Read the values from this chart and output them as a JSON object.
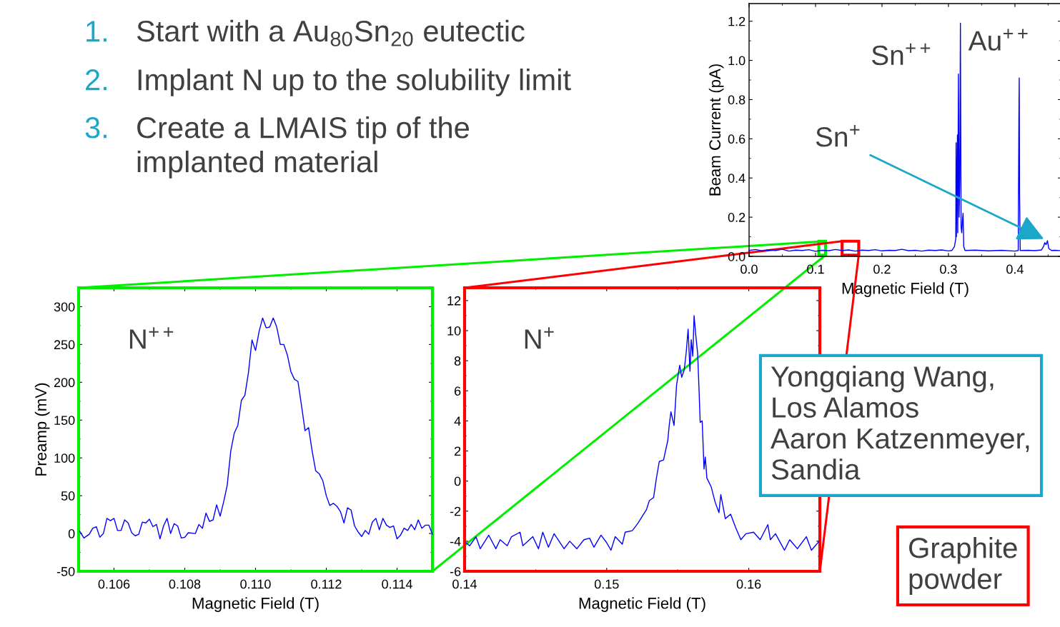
{
  "chart_data": [
    {
      "type": "other",
      "annotations": [
        "1.",
        "Start with a Au$_{80}$Sn$_{20}$ eutectic",
        "2.",
        "Implant N up to the solubility limit",
        "3.",
        "Create a LMAIS tip of the\nimplanted material"
      ]
    },
    {
      "type": "line",
      "xlabel": "Magnetic Field (T)",
      "ylabel": "Beam Current (pA)",
      "xlim": [
        0,
        0.47
      ],
      "ylim": [
        0,
        1.29
      ],
      "xticks": [
        {
          "value": 0,
          "label": "0.0"
        },
        0.1,
        0.2,
        0.3,
        0.4
      ],
      "yticks": [
        {
          "value": 0,
          "label": "0.0"
        },
        0.2,
        0.4,
        0.6,
        0.8,
        {
          "value": 1,
          "label": "1.0"
        },
        1.2
      ],
      "series": [
        {
          "color": "#0000ff",
          "x": [
            0,
            0.01,
            0.02,
            0.03,
            0.04,
            0.05,
            0.06,
            0.07,
            0.08,
            0.09,
            0.1,
            0.11,
            0.12,
            0.13,
            0.14,
            0.15,
            0.16,
            0.17,
            0.18,
            0.19,
            0.2,
            0.21,
            0.22,
            0.23,
            0.24,
            0.25,
            0.26,
            0.27,
            0.28,
            0.29,
            0.3,
            0.305,
            0.309,
            0.311,
            0.3115,
            0.312,
            0.3135,
            0.314,
            0.315,
            0.316,
            0.317,
            0.318,
            0.319,
            0.32,
            0.321,
            0.322,
            0.323,
            0.325,
            0.34,
            0.36,
            0.38,
            0.4,
            0.405,
            0.406,
            0.4065,
            0.407,
            0.408,
            0.42,
            0.43,
            0.44,
            0.443,
            0.445,
            0.447,
            0.449,
            0.451,
            0.455,
            0.46,
            0.47
          ],
          "values": [
            0.03,
            0.035,
            0.028,
            0.033,
            0.03,
            0.036,
            0.027,
            0.032,
            0.03,
            0.034,
            0.026,
            0.031,
            0.029,
            0.035,
            0.03,
            0.033,
            0.027,
            0.032,
            0.03,
            0.034,
            0.028,
            0.031,
            0.03,
            0.036,
            0.029,
            0.031,
            0.027,
            0.032,
            0.03,
            0.033,
            0.028,
            0.03,
            0.05,
            0.09,
            0.58,
            0.1,
            0.62,
            0.12,
            0.93,
            0.2,
            0.4,
            1.19,
            0.15,
            0.12,
            0.18,
            0.22,
            0.05,
            0.03,
            0.032,
            0.028,
            0.031,
            0.027,
            0.03,
            0.7,
            0.91,
            0.32,
            0.03,
            0.031,
            0.029,
            0.033,
            0.05,
            0.07,
            0.06,
            0.08,
            0.04,
            0.03,
            0.031,
            0.029
          ]
        }
      ],
      "annotations": [
        {
          "text": "Sn$^{++}$",
          "x": 0.318,
          "y": 1.19
        },
        {
          "text": "Au$^{++}$",
          "x": 0.4065,
          "y": 0.91
        },
        {
          "text": "Sn$^{+}$",
          "x": 0.449,
          "y": 0.08
        }
      ]
    },
    {
      "type": "line",
      "xlabel": "Magnetic Field (T)",
      "ylabel": "Preamp (mV)",
      "xlim": [
        0.105,
        0.115
      ],
      "ylim": [
        -50,
        325
      ],
      "xticks": [
        0.106,
        0.108,
        {
          "value": 0.11,
          "label": "0.110"
        },
        0.112,
        0.114
      ],
      "yticks": [
        -50,
        0,
        50,
        100,
        150,
        200,
        250,
        300
      ],
      "series": [
        {
          "color": "#0000ff",
          "x": [
            0.10503,
            0.10515,
            0.1053,
            0.1054,
            0.1055,
            0.1056,
            0.1057,
            0.1058,
            0.1059,
            0.106,
            0.1061,
            0.1062,
            0.1063,
            0.1064,
            0.1065,
            0.1066,
            0.1067,
            0.1068,
            0.1069,
            0.107,
            0.1071,
            0.1072,
            0.1073,
            0.1074,
            0.1075,
            0.1076,
            0.1077,
            0.1078,
            0.1079,
            0.108,
            0.1081,
            0.1083,
            0.1084,
            0.1085,
            0.1086,
            0.1087,
            0.1088,
            0.1089,
            0.109,
            0.1091,
            0.1092,
            0.1093,
            0.1094,
            0.1095,
            0.1096,
            0.1097,
            0.1098,
            0.1099,
            0.11,
            0.1101,
            0.1102,
            0.1103,
            0.1104,
            0.1105,
            0.1106,
            0.1107,
            0.1108,
            0.1109,
            0.111,
            0.1111,
            0.1112,
            0.1113,
            0.1114,
            0.1115,
            0.1116,
            0.1117,
            0.1118,
            0.1119,
            0.112,
            0.1121,
            0.1122,
            0.1123,
            0.1124,
            0.1125,
            0.1126,
            0.1127,
            0.1128,
            0.1129,
            0.113,
            0.1131,
            0.1132,
            0.1133,
            0.1134,
            0.1135,
            0.1136,
            0.1137,
            0.1138,
            0.1139,
            0.114,
            0.1141,
            0.1142,
            0.1143,
            0.1144,
            0.1145,
            0.1146,
            0.1147,
            0.1148,
            0.1149,
            0.115
          ],
          "values": [
            3,
            -6,
            -1,
            7,
            9,
            -5,
            0,
            20,
            17,
            20,
            4,
            4,
            18,
            14,
            1,
            -3,
            -1,
            15,
            14,
            19,
            9,
            12,
            -7,
            10,
            20,
            0,
            13,
            10,
            -6,
            -5,
            1,
            0,
            12,
            7,
            27,
            16,
            18,
            38,
            23,
            42,
            64,
            109,
            133,
            143,
            176,
            183,
            213,
            256,
            242,
            267,
            285,
            272,
            273,
            285,
            273,
            250,
            250,
            236,
            214,
            204,
            201,
            169,
            136,
            140,
            109,
            83,
            79,
            70,
            50,
            37,
            40,
            36,
            29,
            14,
            34,
            31,
            10,
            2,
            -4,
            4,
            -1,
            15,
            20,
            5,
            20,
            11,
            8,
            10,
            -7,
            -2,
            7,
            4,
            12,
            5,
            18,
            7,
            11,
            11,
            -1
          ]
        }
      ],
      "annotations": [
        "N$^{++}$"
      ]
    },
    {
      "type": "line",
      "xlabel": "Magnetic Field (T)",
      "xlim": [
        0.14,
        0.165
      ],
      "ylim": [
        -6,
        12.85
      ],
      "xticks": [
        0.14,
        0.15,
        0.16
      ],
      "yticks": [
        -6,
        -4,
        -2,
        0,
        2,
        4,
        6,
        8,
        10,
        12
      ],
      "series": [
        {
          "color": "#0000ff",
          "x": [
            0.1401,
            0.14036,
            0.1408,
            0.1411,
            0.1417,
            0.1422,
            0.1425,
            0.143,
            0.1433,
            0.1439,
            0.1441,
            0.1448,
            0.1452,
            0.1455,
            0.1459,
            0.1463,
            0.147,
            0.1474,
            0.1479,
            0.1484,
            0.1488,
            0.1491,
            0.1496,
            0.15,
            0.1503,
            0.1506,
            0.1511,
            0.1513,
            0.1518,
            0.1522,
            0.1526,
            0.1528,
            0.153,
            0.1533,
            0.1535,
            0.1537,
            0.154,
            0.1543,
            0.1544,
            0.15452,
            0.15474,
            0.15492,
            0.15514,
            0.15528,
            0.15546,
            0.1556,
            0.15573,
            0.15586,
            0.15595,
            0.15606,
            0.15615,
            0.15627,
            0.1564,
            0.15649,
            0.15658,
            0.15672,
            0.15685,
            0.15694,
            0.15705,
            0.15736,
            0.15763,
            0.1579,
            0.15803,
            0.15835,
            0.15872,
            0.15908,
            0.15944,
            0.1598,
            0.16034,
            0.1608,
            0.16134,
            0.16152,
            0.16188,
            0.16251,
            0.16288,
            0.16342,
            0.16405,
            0.16441,
            0.16495
          ],
          "values": [
            -4.1,
            -4.3,
            -3.7,
            -4.5,
            -3.6,
            -4.5,
            -3.9,
            -4.3,
            -3.7,
            -3.4,
            -4.3,
            -3.7,
            -4.5,
            -3.4,
            -4.4,
            -3.5,
            -4.5,
            -4.0,
            -4.5,
            -3.9,
            -3.8,
            -4.4,
            -3.6,
            -4.1,
            -4.6,
            -3.7,
            -4.2,
            -3.4,
            -3.3,
            -2.8,
            -2.2,
            -1.9,
            -1.3,
            -1.1,
            0.2,
            1.3,
            1.4,
            2.7,
            3.7,
            4.6,
            3.7,
            6.4,
            7.7,
            6.9,
            7.4,
            8.6,
            10.1,
            7.3,
            9.4,
            8.3,
            11.0,
            9.7,
            8.5,
            6.3,
            3.9,
            4.0,
            0.8,
            1.6,
            0.2,
            -0.4,
            -1.4,
            -2.1,
            -0.9,
            -2.5,
            -2.2,
            -3.1,
            -3.9,
            -3.5,
            -3.4,
            -3.9,
            -2.9,
            -3.9,
            -3.5,
            -4.6,
            -3.9,
            -4.5,
            -3.7,
            -4.6,
            -4.0
          ]
        }
      ],
      "annotations": [
        "N$^{+}$"
      ]
    },
    {
      "type": "other",
      "annotations": [
        "Yongqiang Wang,\nLos Alamos\nAaron Katzenmeyer,\nSandia",
        "Graphite\npowder"
      ]
    }
  ]
}
